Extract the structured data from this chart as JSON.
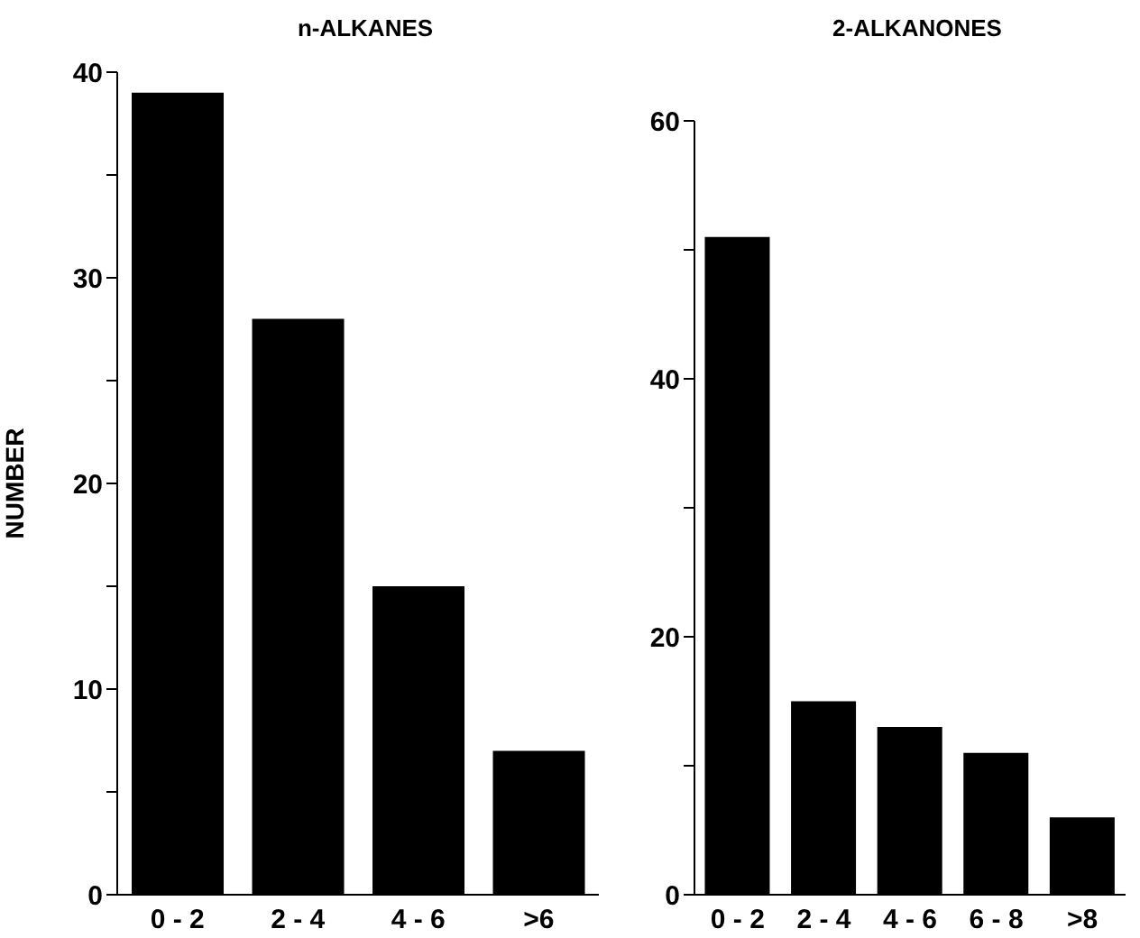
{
  "chart_data": [
    {
      "type": "bar",
      "title": "n-ALKANES",
      "ylabel": "NUMBER",
      "categories": [
        "0 - 2",
        "2 - 4",
        "4 - 6",
        ">6"
      ],
      "values": [
        39,
        28,
        15,
        7
      ],
      "color": "#000000",
      "ylim": [
        0,
        40
      ],
      "yticks": [
        0,
        {
          "value": 5,
          "label": null
        },
        10,
        {
          "value": 15,
          "label": null
        },
        20,
        {
          "value": 25,
          "label": null
        },
        30,
        {
          "value": 35,
          "label": null
        },
        40
      ],
      "grid": false
    },
    {
      "type": "bar",
      "title": "2-ALKANONES",
      "categories": [
        "0 - 2",
        "2 - 4",
        "4 - 6",
        "6 - 8",
        ">8"
      ],
      "values": [
        51,
        15,
        13,
        11,
        6
      ],
      "color": "#000000",
      "ylim": [
        0,
        60
      ],
      "yticks": [
        0,
        {
          "value": 10,
          "label": null
        },
        20,
        {
          "value": 30,
          "label": null
        },
        40,
        {
          "value": 50,
          "label": null
        },
        60
      ],
      "grid": false
    }
  ]
}
